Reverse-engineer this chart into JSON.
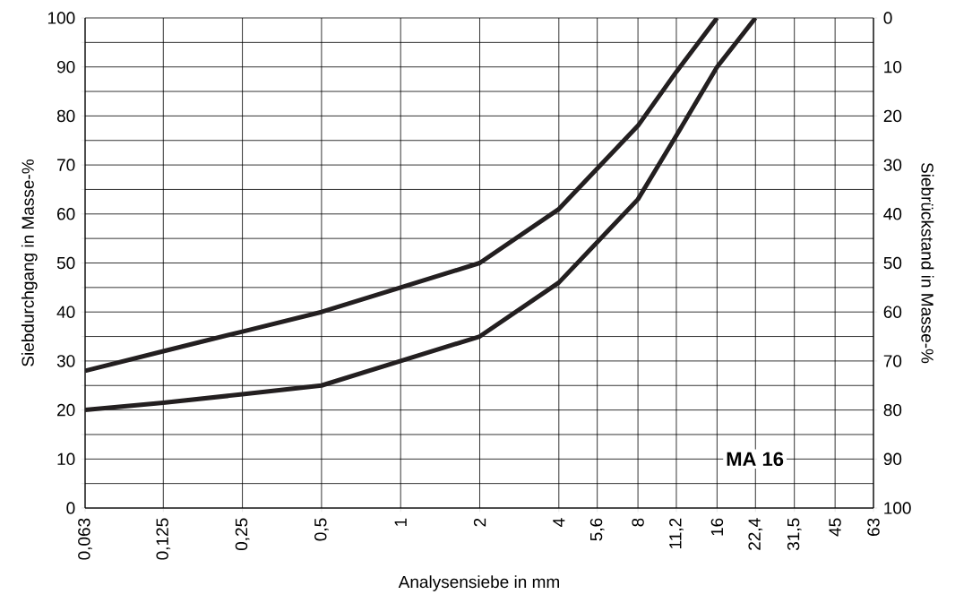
{
  "chart_data": {
    "type": "line",
    "xlabel": "Analysensiebe in mm",
    "ylabel": "Siebdurchgang in Masse-%",
    "y2label": "Siebrückstand in Masse-%",
    "log": "x",
    "xlim": [
      0.063,
      63
    ],
    "xticks": [
      {
        "value": 0.063,
        "label": "0,063"
      },
      {
        "value": 0.125,
        "label": "0,125"
      },
      {
        "value": 0.25,
        "label": "0,25"
      },
      {
        "value": 0.5,
        "label": "0,5"
      },
      1,
      2,
      4,
      {
        "value": 5.6,
        "label": "5,6"
      },
      8,
      {
        "value": 11.2,
        "label": "11,2"
      },
      16,
      {
        "value": 22.4,
        "label": "22,4"
      },
      {
        "value": 31.5,
        "label": "31,5"
      },
      45,
      63
    ],
    "ylim": [
      0,
      100
    ],
    "yticks": [
      0,
      {
        "value": 5,
        "label": null
      },
      10,
      {
        "value": 15,
        "label": null
      },
      20,
      {
        "value": 25,
        "label": null
      },
      30,
      {
        "value": 35,
        "label": null
      },
      40,
      {
        "value": 45,
        "label": null
      },
      50,
      {
        "value": 55,
        "label": null
      },
      60,
      {
        "value": 65,
        "label": null
      },
      70,
      {
        "value": 75,
        "label": null
      },
      80,
      {
        "value": 85,
        "label": null
      },
      90,
      {
        "value": 95,
        "label": null
      },
      100
    ],
    "y2lim": [
      100,
      0
    ],
    "y2ticks": [
      0,
      10,
      20,
      30,
      40,
      50,
      60,
      70,
      80,
      90,
      100
    ],
    "grid": true,
    "series": [
      {
        "color": "#231f20",
        "x": [
          0.063,
          0.125,
          0.25,
          0.5,
          1,
          2,
          4,
          8,
          11.2,
          16
        ],
        "values": [
          28,
          32,
          36,
          40,
          45,
          50,
          61,
          78,
          89,
          100
        ]
      },
      {
        "color": "#231f20",
        "x": [
          0.063,
          0.125,
          0.25,
          0.5,
          1,
          2,
          4,
          8,
          11.2,
          16,
          22.4
        ],
        "values": [
          20,
          21.5,
          23.2,
          25,
          30,
          35,
          46,
          63,
          76,
          90,
          100
        ]
      }
    ],
    "annotations": [
      "MA 16"
    ]
  }
}
